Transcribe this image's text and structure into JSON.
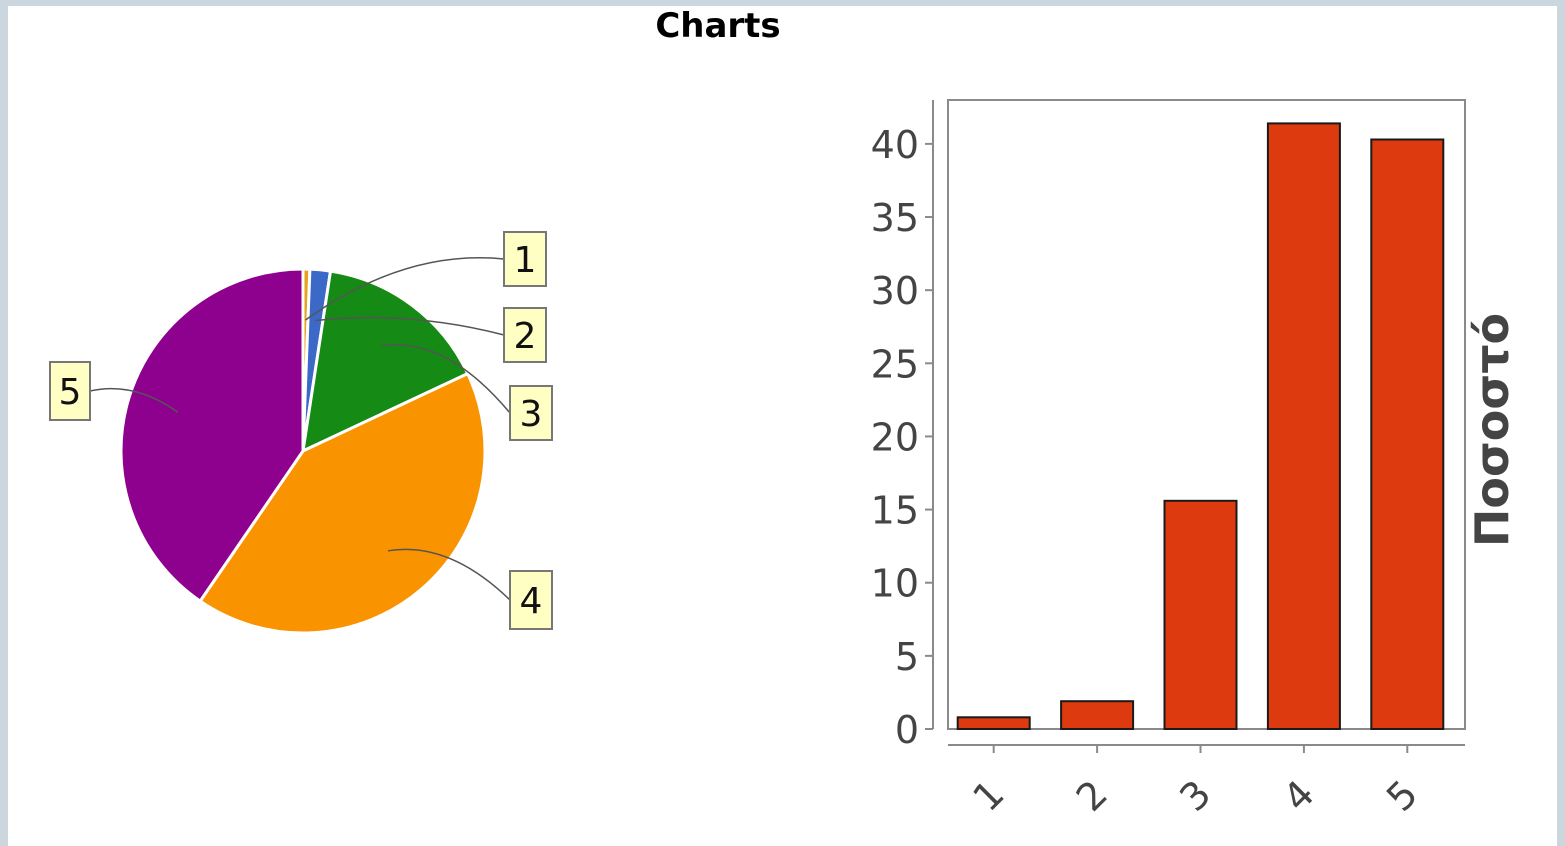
{
  "page": {
    "title": "Charts"
  },
  "chart_data": [
    {
      "type": "pie",
      "labels": [
        "1",
        "2",
        "3",
        "4",
        "5"
      ],
      "values": [
        0.6,
        1.8,
        15.5,
        41.3,
        40.2
      ],
      "colors": [
        "#e6a31e",
        "#3c69c8",
        "#158a15",
        "#f99300",
        "#8e008e"
      ]
    },
    {
      "type": "bar",
      "categories": [
        "1",
        "2",
        "3",
        "4",
        "5"
      ],
      "values": [
        0.8,
        1.9,
        15.6,
        41.4,
        40.3
      ],
      "ylabel": "Ποσοστό",
      "ylim": [
        0,
        43
      ],
      "yticks": [
        0,
        5,
        10,
        15,
        20,
        25,
        30,
        35,
        40
      ],
      "bar_color": "#dd3a10",
      "grid": false
    }
  ]
}
